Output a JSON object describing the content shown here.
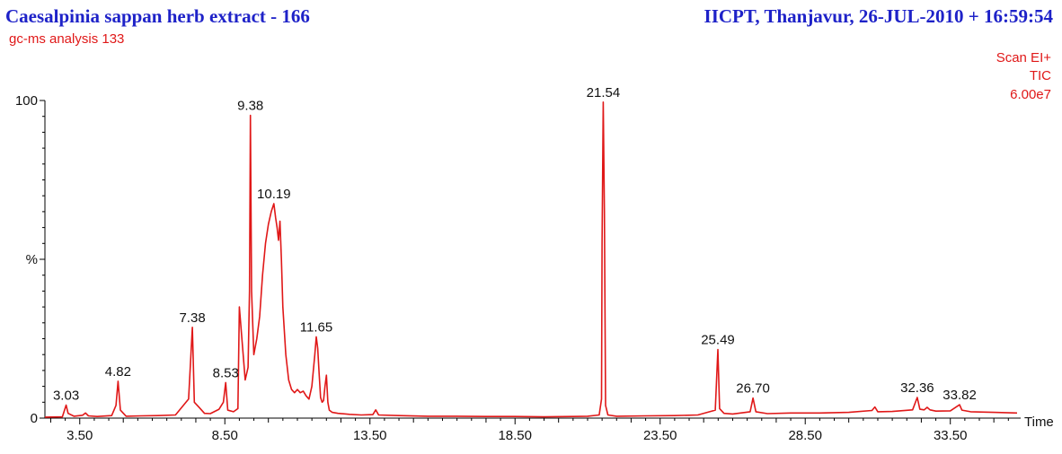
{
  "header": {
    "title": "Caesalpinia sappan herb extract - 166",
    "right_title": "IICPT, Thanjavur,  26-JUL-2010 + 16:59:54",
    "subtitle": "gc-ms analysis 133",
    "scan_mode": "Scan EI+",
    "trace": "TIC",
    "full_scale": "6.00e7"
  },
  "colors": {
    "title": "#1e22c8",
    "trace": "#e01818",
    "axis": "#000000"
  },
  "chart_data": {
    "type": "line",
    "xlabel": "Time",
    "ylabel": "%",
    "xlim": [
      2.3,
      35.8
    ],
    "ylim": [
      0,
      100
    ],
    "x_ticks": [
      "3.50",
      "8.50",
      "13.50",
      "18.50",
      "23.50",
      "28.50",
      "33.50"
    ],
    "y_ticks": [
      "0",
      "100"
    ],
    "series": [
      {
        "x": [
          2.3,
          2.9,
          3.03,
          3.1,
          3.3,
          3.6,
          3.7,
          3.8,
          4.1,
          4.6,
          4.75,
          4.82,
          4.9,
          5.1,
          5.6,
          6.2,
          6.8,
          7.25,
          7.38,
          7.45,
          7.6,
          7.8,
          8.0,
          8.3,
          8.45,
          8.53,
          8.6,
          8.8,
          8.95,
          9.0,
          9.2,
          9.3,
          9.35,
          9.38,
          9.42,
          9.5,
          9.6,
          9.7,
          9.8,
          9.9,
          10.0,
          10.1,
          10.19,
          10.25,
          10.3,
          10.35,
          10.4,
          10.45,
          10.5,
          10.6,
          10.7,
          10.8,
          10.9,
          11.0,
          11.1,
          11.2,
          11.3,
          11.4,
          11.5,
          11.6,
          11.65,
          11.7,
          11.75,
          11.8,
          11.85,
          11.9,
          11.95,
          12.0,
          12.05,
          12.1,
          12.2,
          12.4,
          12.8,
          13.2,
          13.6,
          13.7,
          13.8,
          14.5,
          15.5,
          16.5,
          17.5,
          18.5,
          19.5,
          20.5,
          21.0,
          21.4,
          21.48,
          21.5,
          21.54,
          21.58,
          21.62,
          21.7,
          22.0,
          23.0,
          24.0,
          24.8,
          25.4,
          25.49,
          25.55,
          25.7,
          26.0,
          26.6,
          26.7,
          26.8,
          27.2,
          28.0,
          29.0,
          30.0,
          30.8,
          30.9,
          31.0,
          31.5,
          32.2,
          32.36,
          32.45,
          32.6,
          32.7,
          32.8,
          33.0,
          33.5,
          33.82,
          33.9,
          34.2,
          35.0,
          35.8
        ],
        "y": [
          0.3,
          0.4,
          4.1,
          1.5,
          0.6,
          0.9,
          1.6,
          0.7,
          0.5,
          0.8,
          4.0,
          11.6,
          2.5,
          0.6,
          0.7,
          0.8,
          1.0,
          6.0,
          28.6,
          5.0,
          3.5,
          1.5,
          1.4,
          2.8,
          5.0,
          11.2,
          2.5,
          2.0,
          3.0,
          35.0,
          12.0,
          16.0,
          40.0,
          95.3,
          40.0,
          20.0,
          25.0,
          32.0,
          45.0,
          55.0,
          61.0,
          65.0,
          67.5,
          63.0,
          60.0,
          56.0,
          62.0,
          50.0,
          35.0,
          20.0,
          12.0,
          9.0,
          8.0,
          9.0,
          8.0,
          8.5,
          7.0,
          6.0,
          10.0,
          20.0,
          25.6,
          22.0,
          14.0,
          6.5,
          5.0,
          5.5,
          10.0,
          13.5,
          5.0,
          2.5,
          1.8,
          1.5,
          1.2,
          1.0,
          1.1,
          2.6,
          1.0,
          0.8,
          0.6,
          0.6,
          0.5,
          0.5,
          0.4,
          0.5,
          0.6,
          1.0,
          6.0,
          55.0,
          99.5,
          65.0,
          4.0,
          1.0,
          0.6,
          0.7,
          0.8,
          1.0,
          2.5,
          21.6,
          3.0,
          1.5,
          1.3,
          2.0,
          6.3,
          2.0,
          1.4,
          1.6,
          1.6,
          1.8,
          2.4,
          3.5,
          2.0,
          2.1,
          2.6,
          6.5,
          2.8,
          2.6,
          3.4,
          2.6,
          2.2,
          2.3,
          4.2,
          2.5,
          2.0,
          1.8,
          1.6
        ]
      }
    ],
    "peak_labels": [
      {
        "label": "3.03",
        "x": 3.03,
        "y": 4.1
      },
      {
        "label": "4.82",
        "x": 4.82,
        "y": 11.6
      },
      {
        "label": "7.38",
        "x": 7.38,
        "y": 28.6
      },
      {
        "label": "8.53",
        "x": 8.53,
        "y": 11.2
      },
      {
        "label": "9.38",
        "x": 9.38,
        "y": 95.3
      },
      {
        "label": "10.19",
        "x": 10.19,
        "y": 67.5
      },
      {
        "label": "11.65",
        "x": 11.65,
        "y": 25.6
      },
      {
        "label": "21.54",
        "x": 21.54,
        "y": 99.5
      },
      {
        "label": "25.49",
        "x": 25.49,
        "y": 21.6
      },
      {
        "label": "26.70",
        "x": 26.7,
        "y": 6.3
      },
      {
        "label": "32.36",
        "x": 32.36,
        "y": 6.5
      },
      {
        "label": "33.82",
        "x": 33.82,
        "y": 4.2
      }
    ]
  }
}
